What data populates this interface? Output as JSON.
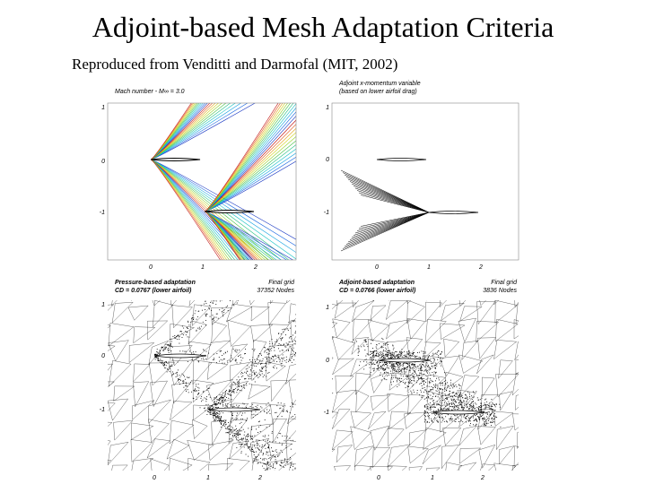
{
  "header": {
    "title": "Adjoint-based Mesh Adaptation Criteria",
    "subtitle": "Reproduced from Venditti and Darmofal (MIT, 2002)"
  },
  "panels": [
    {
      "caption": [
        "Mach number - M∞ = 3.0"
      ],
      "note": [],
      "yticks": [
        "1",
        "0",
        "-1"
      ],
      "xticks": [
        "0",
        "1",
        "2"
      ]
    },
    {
      "caption": [
        "Adjoint x-momentum variable",
        "(based on lower airfoil drag)"
      ],
      "note": [],
      "yticks": [
        "1",
        "0",
        "-1"
      ],
      "xticks": [
        "0",
        "1",
        "2"
      ]
    },
    {
      "caption": [
        "Pressure-based adaptation",
        "CD = 0.0767 (lower airfoil)"
      ],
      "note": [
        "Final grid",
        "37352 Nodes"
      ],
      "yticks": [
        "1",
        "0",
        "-1"
      ],
      "xticks": [
        "0",
        "1",
        "2"
      ]
    },
    {
      "caption": [
        "Adjoint-based adaptation",
        "CD = 0.0766 (lower airfoil)"
      ],
      "note": [
        "Final grid",
        "3836 Nodes"
      ],
      "yticks": [
        "1",
        "0",
        "-1"
      ],
      "xticks": [
        "0",
        "1",
        "2"
      ]
    }
  ]
}
